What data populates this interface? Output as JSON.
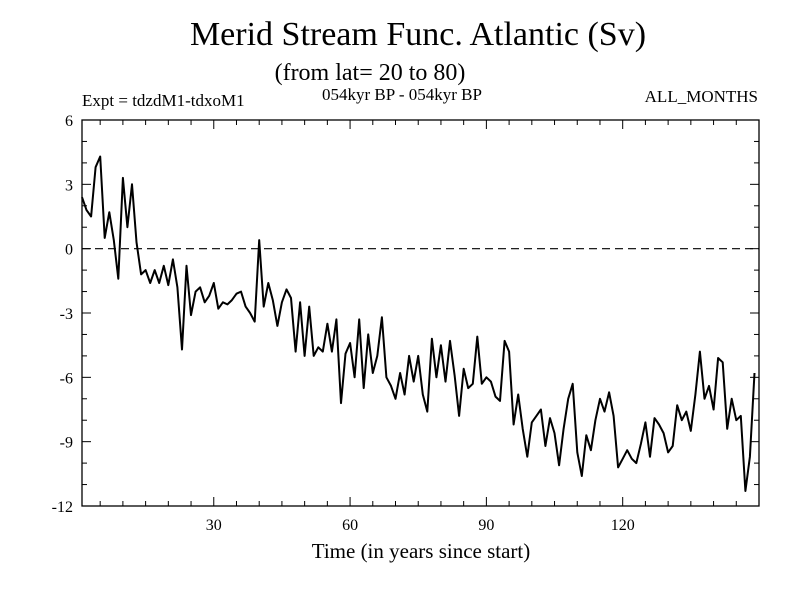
{
  "chart_data": {
    "type": "line",
    "title": "Merid Stream Func. Atlantic (Sv)",
    "subtitle": "(from lat= 20 to 80)",
    "expt_label": "Expt = tdzdM1-tdxoM1",
    "period_label": "054kyr BP - 054kyr BP",
    "months_label": "ALL_MONTHS",
    "xlabel": "Time (in years since start)",
    "ylabel": "",
    "xlim": [
      1,
      150
    ],
    "ylim": [
      -12,
      6
    ],
    "xticks": [
      30,
      60,
      90,
      120
    ],
    "yticks": [
      6,
      3,
      0,
      -3,
      -6,
      -9,
      -12
    ],
    "reference_line": {
      "y": 0,
      "style": "dashed"
    },
    "series": [
      {
        "name": "Merid Stream Func. Atlantic",
        "x_start": 1,
        "x_step": 1,
        "values": [
          2.4,
          1.8,
          1.5,
          3.8,
          4.3,
          0.5,
          1.7,
          0.4,
          -1.4,
          3.3,
          1.0,
          3.0,
          0.3,
          -1.2,
          -1.0,
          -1.6,
          -1.0,
          -1.6,
          -0.8,
          -1.7,
          -0.5,
          -1.8,
          -4.7,
          -0.8,
          -3.1,
          -2.0,
          -1.8,
          -2.5,
          -2.2,
          -1.6,
          -2.8,
          -2.5,
          -2.6,
          -2.4,
          -2.1,
          -2.0,
          -2.7,
          -3.0,
          -3.4,
          0.4,
          -2.7,
          -1.6,
          -2.4,
          -3.6,
          -2.5,
          -1.9,
          -2.3,
          -4.8,
          -2.5,
          -5.0,
          -2.7,
          -5.0,
          -4.6,
          -4.8,
          -3.5,
          -4.8,
          -3.3,
          -7.2,
          -4.9,
          -4.4,
          -6.0,
          -3.3,
          -6.5,
          -4.0,
          -5.8,
          -5.0,
          -3.2,
          -6.0,
          -6.4,
          -7.0,
          -5.8,
          -6.8,
          -5.0,
          -6.2,
          -5.0,
          -6.8,
          -7.6,
          -4.2,
          -6.0,
          -4.5,
          -6.2,
          -4.3,
          -5.9,
          -7.8,
          -5.6,
          -6.5,
          -6.3,
          -4.1,
          -6.3,
          -6.0,
          -6.2,
          -6.9,
          -7.1,
          -4.3,
          -4.8,
          -8.2,
          -6.8,
          -8.4,
          -9.7,
          -8.1,
          -7.8,
          -7.5,
          -9.2,
          -7.9,
          -8.6,
          -10.1,
          -8.4,
          -7.0,
          -6.3,
          -9.5,
          -10.6,
          -8.7,
          -9.4,
          -8.0,
          -7.0,
          -7.6,
          -6.7,
          -7.8,
          -10.2,
          -9.8,
          -9.4,
          -9.8,
          -10.0,
          -9.1,
          -8.1,
          -9.7,
          -7.9,
          -8.2,
          -8.6,
          -9.5,
          -9.2,
          -7.3,
          -8.0,
          -7.6,
          -8.5,
          -6.8,
          -4.8,
          -7.0,
          -6.4,
          -7.5,
          -5.1,
          -5.3,
          -8.4,
          -7.0,
          -8.0,
          -7.8,
          -11.3,
          -9.7,
          -5.8
        ]
      }
    ]
  }
}
